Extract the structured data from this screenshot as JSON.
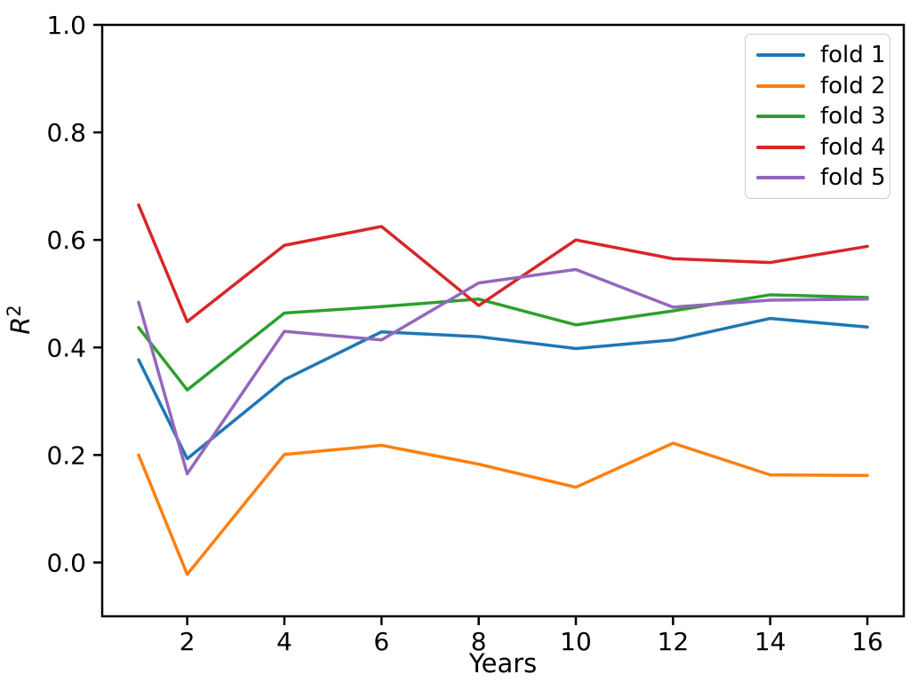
{
  "chart_data": {
    "type": "line",
    "title": "",
    "xlabel": "Years",
    "ylabel_base": "R",
    "ylabel_sup": "2",
    "grid": false,
    "legend_position": "upper right",
    "xlim": [
      0.25,
      16.75
    ],
    "ylim": [
      -0.1,
      1.0
    ],
    "x": [
      1,
      2,
      4,
      6,
      8,
      10,
      12,
      14,
      16
    ],
    "xticks": [
      2,
      4,
      6,
      8,
      10,
      12,
      14,
      16
    ],
    "ytick_values": [
      0.0,
      0.2,
      0.4,
      0.6,
      0.8,
      1.0
    ],
    "ytick_labels": [
      "0.0",
      "0.2",
      "0.4",
      "0.6",
      "0.8",
      "1.0"
    ],
    "series": [
      {
        "name": "fold 1",
        "color": "#1f77b4",
        "values": [
          0.377,
          0.193,
          0.34,
          0.429,
          0.42,
          0.398,
          0.414,
          0.454,
          0.438
        ]
      },
      {
        "name": "fold 2",
        "color": "#ff7f0e",
        "values": [
          0.2,
          -0.022,
          0.201,
          0.218,
          0.183,
          0.14,
          0.222,
          0.163,
          0.162
        ]
      },
      {
        "name": "fold 3",
        "color": "#2ca02c",
        "values": [
          0.437,
          0.321,
          0.464,
          0.476,
          0.49,
          0.442,
          0.468,
          0.498,
          0.493
        ]
      },
      {
        "name": "fold 4",
        "color": "#d62728",
        "values": [
          0.665,
          0.448,
          0.59,
          0.625,
          0.478,
          0.6,
          0.565,
          0.558,
          0.588
        ]
      },
      {
        "name": "fold 5",
        "color": "#9467bd",
        "values": [
          0.484,
          0.165,
          0.43,
          0.414,
          0.52,
          0.545,
          0.475,
          0.488,
          0.49
        ]
      }
    ]
  },
  "style_colors": {
    "spine": "#000000",
    "tick_label": "#000000",
    "legend_border": "#cccccc",
    "background": "#ffffff"
  }
}
